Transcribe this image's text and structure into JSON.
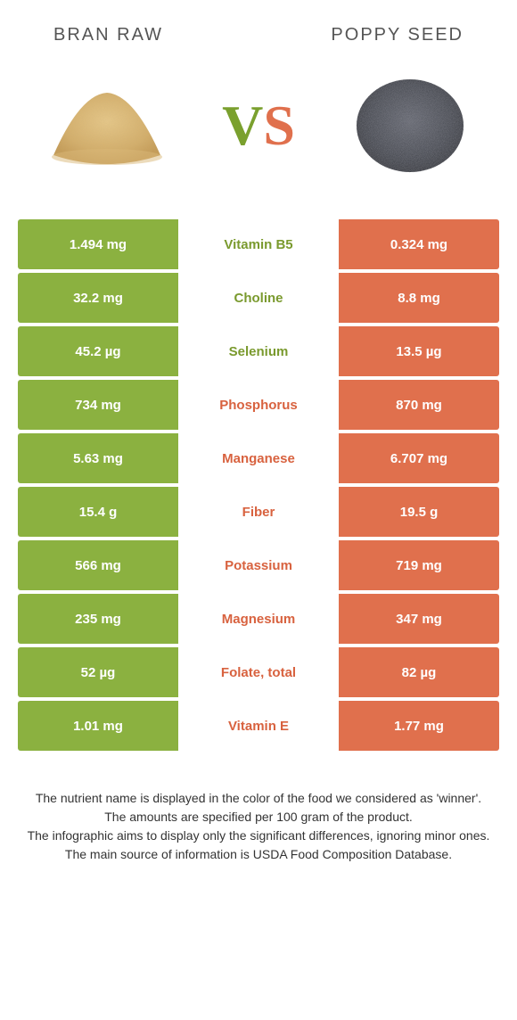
{
  "colors": {
    "left": "#8bb140",
    "right": "#e0704d",
    "left_text": "#7a9a2e",
    "right_text": "#d8623f",
    "header_text": "#555555",
    "footer_text": "#333333",
    "background": "#ffffff"
  },
  "header": {
    "left_title": "BRAN RAW",
    "right_title": "POPPY SEED"
  },
  "vs": {
    "v": "V",
    "s": "S"
  },
  "rows": [
    {
      "left": "1.494 mg",
      "label": "Vitamin B5",
      "right": "0.324 mg",
      "winner": "left"
    },
    {
      "left": "32.2 mg",
      "label": "Choline",
      "right": "8.8 mg",
      "winner": "left"
    },
    {
      "left": "45.2 µg",
      "label": "Selenium",
      "right": "13.5 µg",
      "winner": "left"
    },
    {
      "left": "734 mg",
      "label": "Phosphorus",
      "right": "870 mg",
      "winner": "right"
    },
    {
      "left": "5.63 mg",
      "label": "Manganese",
      "right": "6.707 mg",
      "winner": "right"
    },
    {
      "left": "15.4 g",
      "label": "Fiber",
      "right": "19.5 g",
      "winner": "right"
    },
    {
      "left": "566 mg",
      "label": "Potassium",
      "right": "719 mg",
      "winner": "right"
    },
    {
      "left": "235 mg",
      "label": "Magnesium",
      "right": "347 mg",
      "winner": "right"
    },
    {
      "left": "52 µg",
      "label": "Folate, total",
      "right": "82 µg",
      "winner": "right"
    },
    {
      "left": "1.01 mg",
      "label": "Vitamin E",
      "right": "1.77 mg",
      "winner": "right"
    }
  ],
  "footer": {
    "line1": "The nutrient name is displayed in the color of the food we considered as 'winner'.",
    "line2": "The amounts are specified per 100 gram of the product.",
    "line3": "The infographic aims to display only the significant differences, ignoring minor ones.",
    "line4": "The main source of information is USDA Food Composition Database."
  }
}
